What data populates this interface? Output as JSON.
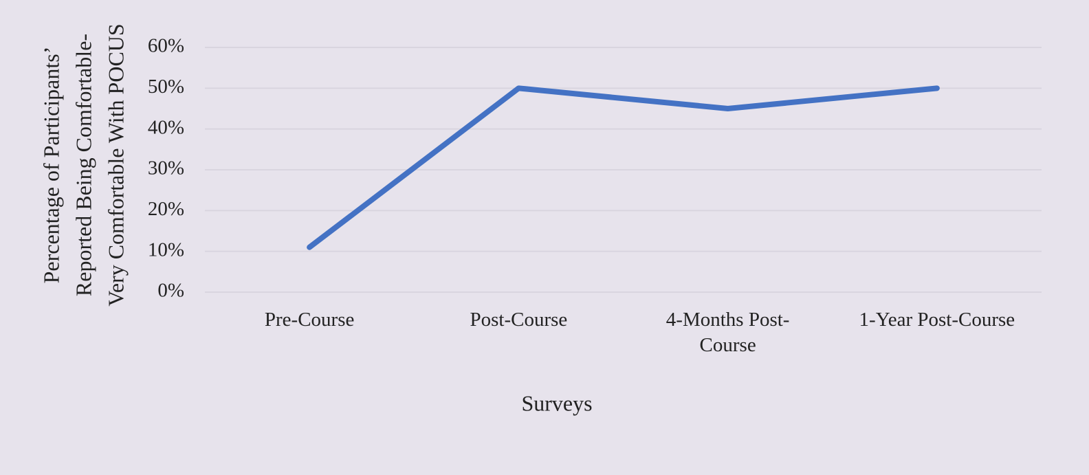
{
  "chart_data": {
    "type": "line",
    "y_label": [
      "Percentage of Participants’",
      "Reported Being Comfortable-",
      "Very Comfortable With POCUS"
    ],
    "x_label": "Surveys",
    "categories": [
      "Pre-Course",
      "Post-Course",
      "4-Months Post-Course",
      "1-Year Post-Course"
    ],
    "series": [
      {
        "color": "#4472c4",
        "values": [
          11,
          50,
          45,
          50
        ]
      }
    ],
    "ylim": [
      0,
      60
    ],
    "yticks": [
      {
        "value": 0,
        "label": "0%"
      },
      {
        "value": 10,
        "label": "10%"
      },
      {
        "value": 20,
        "label": "20%"
      },
      {
        "value": 30,
        "label": "30%"
      },
      {
        "value": 40,
        "label": "40%"
      },
      {
        "value": 50,
        "label": "50%"
      },
      {
        "value": 60,
        "label": "60%"
      }
    ],
    "grid": true
  }
}
